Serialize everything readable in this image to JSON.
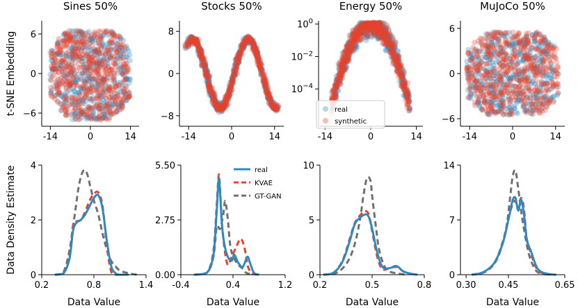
{
  "colors": {
    "real": "#2a8bc2",
    "synthetic": "#e8412b",
    "gtgan": "#707070"
  },
  "chart_data": [
    {
      "type": "scatter",
      "title": "Sines 50%",
      "ylabel": "t-SNE Embedding",
      "xlabel": "",
      "xticks": [
        "-14",
        "0",
        "14"
      ],
      "xtick_values": [
        -14,
        0,
        14
      ],
      "yticks": [
        "6",
        "0",
        "-6"
      ],
      "ytick_values": [
        6,
        0,
        -6
      ],
      "xlim": [
        -17,
        17
      ],
      "ylim": [
        -8,
        8
      ],
      "shape": "blob"
    },
    {
      "type": "scatter",
      "title": "Stocks 50%",
      "ylabel": "",
      "xlabel": "",
      "xticks": [
        "-14",
        "0",
        "14"
      ],
      "xtick_values": [
        -14,
        0,
        14
      ],
      "yticks": [
        "8",
        "0",
        "-8"
      ],
      "ytick_values": [
        8,
        0,
        -8
      ],
      "xlim": [
        -17,
        17
      ],
      "ylim": [
        -10,
        10
      ],
      "shape": "snake"
    },
    {
      "type": "scatter",
      "title": "Energy 50%",
      "ylabel": "",
      "xlabel": "",
      "xticks": [
        "-14",
        "0",
        "14"
      ],
      "xtick_values": [
        -14,
        0,
        14
      ],
      "yticks": [
        "10^0",
        "10^-2",
        "10^-4"
      ],
      "ytick_values": [
        0,
        -2,
        -4
      ],
      "yscale": "log",
      "xlim": [
        -16,
        16
      ],
      "ylim": [
        -6.3,
        0.2
      ],
      "shape": "arch",
      "legend": {
        "entries": [
          "real",
          "synthetic"
        ],
        "loc": "lower-left"
      }
    },
    {
      "type": "scatter",
      "title": "MuJoCo 50%",
      "ylabel": "",
      "xlabel": "",
      "xticks": [
        "-14",
        "0",
        "14"
      ],
      "xtick_values": [
        -14,
        0,
        14
      ],
      "yticks": [
        "6",
        "0",
        "-6"
      ],
      "ytick_values": [
        6,
        0,
        -6
      ],
      "xlim": [
        -17,
        17
      ],
      "ylim": [
        -7,
        7
      ],
      "shape": "cloud"
    },
    {
      "type": "line",
      "title": "",
      "ylabel": "Data Density Estimate",
      "xlabel": "Data Value",
      "xticks": [
        "0.2",
        "0.8",
        "1.4"
      ],
      "xtick_values": [
        0.2,
        0.8,
        1.4
      ],
      "yticks": [
        "0",
        "2",
        "4"
      ],
      "ytick_values": [
        0,
        2,
        4
      ],
      "xlim": [
        0.2,
        1.4
      ],
      "ylim": [
        0,
        4
      ],
      "series": [
        {
          "name": "real",
          "x": [
            0.35,
            0.45,
            0.52,
            0.56,
            0.6,
            0.65,
            0.7,
            0.75,
            0.8,
            0.85,
            0.9,
            0.95,
            1.0,
            1.05,
            1.1,
            1.2
          ],
          "y": [
            0,
            0.05,
            0.6,
            1.6,
            1.9,
            2.0,
            2.2,
            2.5,
            2.8,
            2.9,
            2.4,
            1.2,
            0.3,
            0.05,
            0,
            0
          ]
        },
        {
          "name": "KVAE",
          "x": [
            0.35,
            0.45,
            0.52,
            0.56,
            0.6,
            0.65,
            0.7,
            0.75,
            0.8,
            0.85,
            0.9,
            0.95,
            1.0,
            1.05,
            1.1,
            1.2
          ],
          "y": [
            0,
            0.05,
            0.7,
            1.8,
            1.95,
            2.0,
            2.3,
            2.7,
            2.95,
            3.0,
            2.5,
            1.0,
            0.1,
            0,
            0,
            0
          ]
        },
        {
          "name": "GT-GAN",
          "x": [
            0.35,
            0.45,
            0.52,
            0.58,
            0.63,
            0.68,
            0.72,
            0.76,
            0.8,
            0.85,
            0.9,
            0.95,
            1.0,
            1.05,
            1.1,
            1.2,
            1.3
          ],
          "y": [
            0,
            0.1,
            0.9,
            2.2,
            3.3,
            3.8,
            3.7,
            3.2,
            2.7,
            2.2,
            1.5,
            0.9,
            0.5,
            0.3,
            0.15,
            0.05,
            0
          ]
        }
      ]
    },
    {
      "type": "line",
      "title": "",
      "ylabel": "",
      "xlabel": "Data Value",
      "xticks": [
        "-0.4",
        "0.4",
        "1.2"
      ],
      "xtick_values": [
        -0.4,
        0.4,
        1.2
      ],
      "yticks": [
        "0.00",
        "2.75",
        "5.50"
      ],
      "ytick_values": [
        0,
        2.75,
        5.5
      ],
      "xlim": [
        -0.4,
        1.2
      ],
      "ylim": [
        0,
        5.5
      ],
      "legend": {
        "entries": [
          "real",
          "KVAE",
          "GT-GAN"
        ],
        "loc": "top-right"
      },
      "series": [
        {
          "name": "real",
          "x": [
            -0.2,
            0.0,
            0.1,
            0.15,
            0.18,
            0.2,
            0.23,
            0.27,
            0.32,
            0.38,
            0.42,
            0.48,
            0.55,
            0.62,
            0.66,
            0.72,
            0.8
          ],
          "y": [
            0,
            0.1,
            1.0,
            3.2,
            4.8,
            4.2,
            2.5,
            1.5,
            0.9,
            0.7,
            1.0,
            0.6,
            0.4,
            0.9,
            0.6,
            0.1,
            0
          ]
        },
        {
          "name": "KVAE",
          "x": [
            -0.2,
            0.0,
            0.1,
            0.15,
            0.18,
            0.2,
            0.23,
            0.27,
            0.32,
            0.38,
            0.45,
            0.52,
            0.58,
            0.63,
            0.7,
            0.8
          ],
          "y": [
            0,
            0.1,
            1.2,
            3.5,
            5.0,
            4.4,
            2.6,
            1.3,
            0.5,
            0.9,
            1.4,
            1.8,
            1.3,
            0.4,
            0.05,
            0
          ]
        },
        {
          "name": "GT-GAN",
          "x": [
            -0.2,
            0.0,
            0.1,
            0.15,
            0.2,
            0.25,
            0.28,
            0.32,
            0.36,
            0.42,
            0.48,
            0.55,
            0.6,
            0.7
          ],
          "y": [
            0,
            0.1,
            0.9,
            2.4,
            2.3,
            3.0,
            3.7,
            2.8,
            1.4,
            0.8,
            0.5,
            0.3,
            0.1,
            0
          ]
        }
      ]
    },
    {
      "type": "line",
      "title": "",
      "ylabel": "",
      "xlabel": "Data Value",
      "xticks": [
        "0.2",
        "0.5",
        "0.8"
      ],
      "xtick_values": [
        0.2,
        0.5,
        0.8
      ],
      "yticks": [
        "0",
        "5",
        "10"
      ],
      "ytick_values": [
        0,
        5,
        10
      ],
      "xlim": [
        0.2,
        0.8
      ],
      "ylim": [
        0,
        10
      ],
      "series": [
        {
          "name": "real",
          "x": [
            0.22,
            0.28,
            0.33,
            0.37,
            0.4,
            0.43,
            0.46,
            0.48,
            0.5,
            0.53,
            0.56,
            0.6,
            0.64,
            0.68,
            0.72,
            0.76
          ],
          "y": [
            0,
            0.2,
            1.2,
            3.0,
            4.6,
            5.2,
            5.5,
            5.3,
            4.2,
            2.0,
            0.7,
            0.6,
            0.8,
            0.3,
            0.1,
            0
          ]
        },
        {
          "name": "KVAE",
          "x": [
            0.22,
            0.28,
            0.33,
            0.37,
            0.4,
            0.43,
            0.46,
            0.48,
            0.5,
            0.53,
            0.56,
            0.6,
            0.64,
            0.68,
            0.72,
            0.76
          ],
          "y": [
            0,
            0.2,
            1.3,
            3.2,
            4.7,
            5.4,
            5.8,
            5.5,
            4.0,
            1.6,
            0.5,
            0.6,
            0.7,
            0.3,
            0.1,
            0
          ]
        },
        {
          "name": "GT-GAN",
          "x": [
            0.22,
            0.3,
            0.36,
            0.4,
            0.43,
            0.45,
            0.47,
            0.49,
            0.5,
            0.52,
            0.54,
            0.57,
            0.6,
            0.65,
            0.7
          ],
          "y": [
            0,
            0.2,
            1.2,
            2.8,
            5.0,
            7.2,
            8.8,
            8.6,
            7.2,
            4.6,
            2.3,
            0.8,
            0.3,
            0.1,
            0
          ]
        }
      ]
    },
    {
      "type": "line",
      "title": "",
      "ylabel": "",
      "xlabel": "Data Value",
      "xticks": [
        "0.30",
        "0.45",
        "0.65"
      ],
      "xtick_values": [
        0.3,
        0.45,
        0.65
      ],
      "yticks": [
        "0",
        "7",
        "14"
      ],
      "ytick_values": [
        0,
        7,
        14
      ],
      "xlim": [
        0.28,
        0.65
      ],
      "ylim": [
        0,
        14
      ],
      "series": [
        {
          "name": "real",
          "x": [
            0.32,
            0.36,
            0.4,
            0.43,
            0.45,
            0.465,
            0.475,
            0.485,
            0.495,
            0.505,
            0.515,
            0.53,
            0.55,
            0.57,
            0.6,
            0.62
          ],
          "y": [
            0,
            0.3,
            1.5,
            4.0,
            7.0,
            9.5,
            9.8,
            8.2,
            9.6,
            7.8,
            4.5,
            3.0,
            1.0,
            0.3,
            0.05,
            0
          ]
        },
        {
          "name": "KVAE",
          "x": [
            0.32,
            0.36,
            0.4,
            0.43,
            0.45,
            0.465,
            0.475,
            0.485,
            0.495,
            0.505,
            0.515,
            0.53,
            0.55,
            0.57,
            0.6
          ],
          "y": [
            0,
            0.3,
            1.5,
            4.2,
            7.2,
            9.0,
            9.4,
            8.4,
            9.8,
            8.5,
            4.6,
            2.7,
            0.8,
            0.2,
            0
          ]
        },
        {
          "name": "GT-GAN",
          "x": [
            0.32,
            0.37,
            0.41,
            0.44,
            0.455,
            0.465,
            0.475,
            0.485,
            0.5,
            0.52,
            0.54,
            0.56,
            0.6
          ],
          "y": [
            0,
            0.4,
            2.0,
            5.5,
            9.5,
            12.5,
            13.3,
            11.0,
            7.0,
            3.0,
            1.0,
            0.2,
            0
          ]
        }
      ]
    }
  ]
}
